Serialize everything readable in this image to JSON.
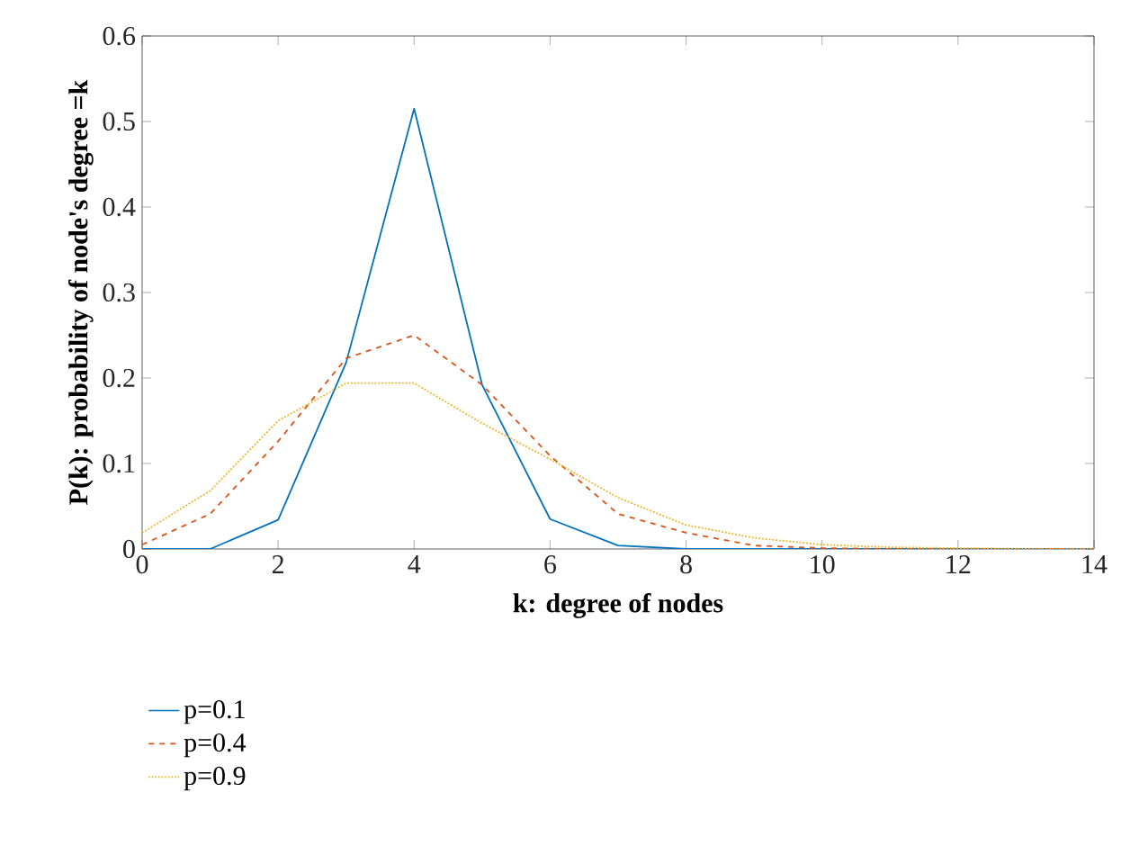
{
  "chart_data": {
    "type": "line",
    "xlabel": "**k: degree of nodes**",
    "ylabel": "**P(k): probability of node's degree =k**",
    "x": [
      0,
      1,
      2,
      3,
      4,
      5,
      6,
      7,
      8,
      9,
      10,
      11,
      12,
      13,
      14
    ],
    "series": [
      {
        "name": "p=0.1",
        "color": "#0072bd",
        "line_style": "solid",
        "values": [
          0,
          0,
          0.034,
          0.218,
          0.515,
          0.192,
          0.035,
          0.004,
          0,
          0,
          0,
          0,
          0,
          0,
          0
        ]
      },
      {
        "name": "p=0.4",
        "color": "#d95319",
        "line_style": "dashed",
        "values": [
          0.005,
          0.041,
          0.126,
          0.223,
          0.25,
          0.192,
          0.109,
          0.041,
          0.019,
          0.004,
          0.001,
          0,
          0,
          0,
          0
        ]
      },
      {
        "name": "p=0.9",
        "color": "#edb120",
        "line_style": "dotted",
        "values": [
          0.019,
          0.068,
          0.15,
          0.194,
          0.194,
          0.147,
          0.105,
          0.06,
          0.028,
          0.013,
          0.005,
          0.002,
          0.001,
          0,
          0
        ]
      }
    ],
    "xlim": [
      0,
      14
    ],
    "ylim": [
      0,
      0.6
    ],
    "xticks": [
      0,
      2,
      4,
      6,
      8,
      10,
      12,
      14
    ],
    "yticks": [
      0,
      0.1,
      0.2,
      0.3,
      0.4,
      0.5,
      0.6
    ],
    "grid": false,
    "legend": "bottom left",
    "marker": "none"
  }
}
